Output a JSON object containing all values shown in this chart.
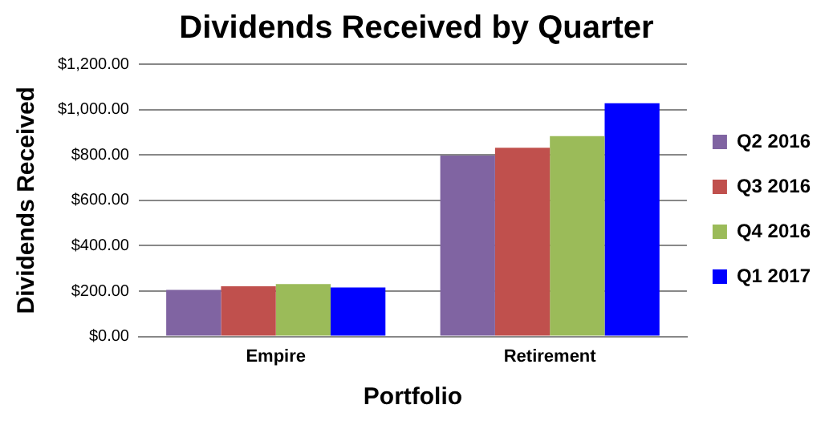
{
  "chart_data": {
    "type": "bar",
    "title": "Dividends Received by Quarter",
    "xlabel": "Portfolio",
    "ylabel": "Dividends Received",
    "categories": [
      "Empire",
      "Retirement"
    ],
    "series": [
      {
        "name": "Q2 2016",
        "color": "#8064a2",
        "values": [
          205,
          797
        ]
      },
      {
        "name": "Q3 2016",
        "color": "#c0504d",
        "values": [
          221,
          832
        ]
      },
      {
        "name": "Q4 2016",
        "color": "#9bbb59",
        "values": [
          231,
          883
        ]
      },
      {
        "name": "Q1 2017",
        "color": "#0000ff",
        "values": [
          216,
          1028
        ]
      }
    ],
    "ylim": [
      0,
      1200
    ],
    "yticks": [
      {
        "value": 0,
        "label": "$0.00"
      },
      {
        "value": 200,
        "label": "$200.00"
      },
      {
        "value": 400,
        "label": "$400.00"
      },
      {
        "value": 600,
        "label": "$600.00"
      },
      {
        "value": 800,
        "label": "$800.00"
      },
      {
        "value": 1000,
        "label": "$1,000.00"
      },
      {
        "value": 1200,
        "label": "$1,200.00"
      }
    ],
    "grid": "y",
    "legend": "right"
  }
}
